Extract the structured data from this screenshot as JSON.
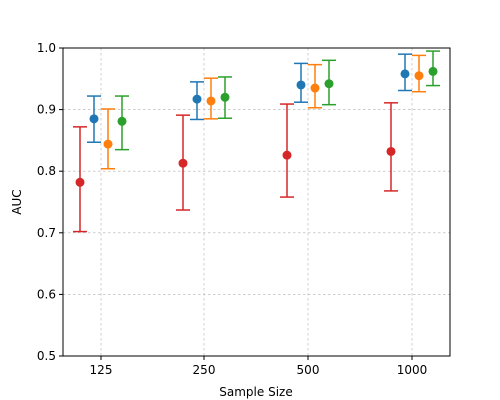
{
  "chart_data": {
    "type": "scatter",
    "title": "",
    "xlabel": "Sample Size",
    "ylabel": "AUC",
    "categories": [
      "125",
      "250",
      "500",
      "1000"
    ],
    "ylim": [
      0.5,
      1.0
    ],
    "yticks": [
      "0.5",
      "0.6",
      "0.7",
      "0.8",
      "0.9",
      "1.0"
    ],
    "grid": true,
    "legend": "none",
    "error_bars": true,
    "series": [
      {
        "color": "#d62728",
        "values": [
          0.782,
          0.813,
          0.826,
          0.832
        ],
        "lower": [
          0.702,
          0.737,
          0.758,
          0.768
        ],
        "upper": [
          0.872,
          0.891,
          0.909,
          0.911
        ]
      },
      {
        "color": "#1f77b4",
        "values": [
          0.885,
          0.917,
          0.94,
          0.958
        ],
        "lower": [
          0.847,
          0.884,
          0.912,
          0.931
        ],
        "upper": [
          0.922,
          0.945,
          0.975,
          0.99
        ]
      },
      {
        "color": "#ff7f0e",
        "values": [
          0.844,
          0.914,
          0.935,
          0.955
        ],
        "lower": [
          0.804,
          0.885,
          0.903,
          0.929
        ],
        "upper": [
          0.901,
          0.951,
          0.973,
          0.988
        ]
      },
      {
        "color": "#2ca02c",
        "values": [
          0.881,
          0.92,
          0.942,
          0.962
        ],
        "lower": [
          0.835,
          0.886,
          0.908,
          0.939
        ],
        "upper": [
          0.922,
          0.953,
          0.98,
          0.995
        ]
      }
    ]
  }
}
